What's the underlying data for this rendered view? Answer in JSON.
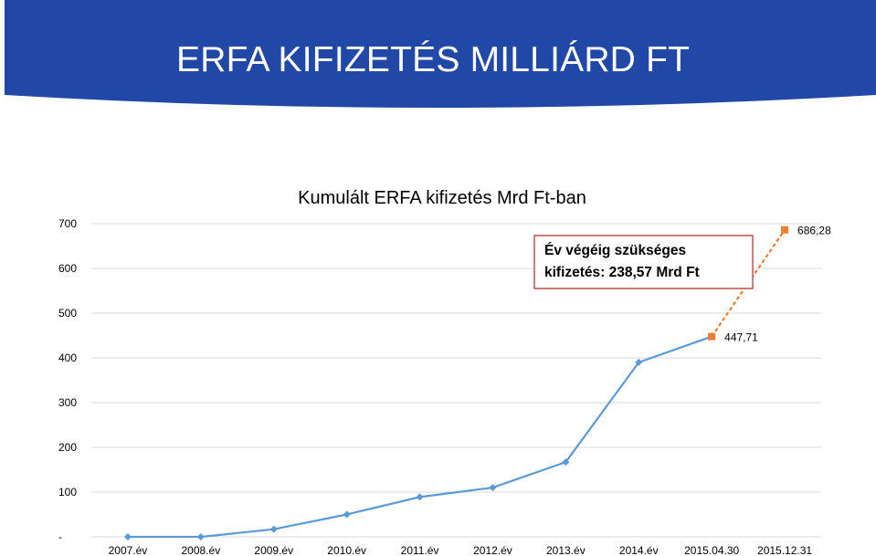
{
  "slide": {
    "title": "ERFA KIFIZETÉS MILLIÁRD FT",
    "banner_color": "#2148A6"
  },
  "chart_data": {
    "type": "line",
    "title": "Kumulált ERFA kifizetés Mrd Ft-ban",
    "categories": [
      "2007.év",
      "2008.év",
      "2009.év",
      "2010.év",
      "2011.év",
      "2012.év",
      "2013.év",
      "2014.év",
      "2015.04.30",
      "2015.12.31"
    ],
    "y_tick_labels": [
      "-",
      "100",
      "200",
      "300",
      "400",
      "500",
      "600",
      "700"
    ],
    "ylim": [
      0,
      700
    ],
    "grid": true,
    "series": [
      {
        "values": [
          0,
          0,
          17,
          50,
          89,
          110,
          167,
          390,
          447.71,
          null
        ],
        "color": "#5B9BD5",
        "line_style": "solid",
        "marker": "diamond"
      },
      {
        "values": [
          null,
          null,
          null,
          null,
          null,
          null,
          null,
          null,
          447.71,
          686.28
        ],
        "color": "#ED7D31",
        "line_style": "dashed",
        "marker": "square"
      }
    ],
    "data_labels": [
      {
        "category_index": 8,
        "text": "447,71"
      },
      {
        "category_index": 9,
        "text": "686,28"
      }
    ],
    "annotation": {
      "lines": [
        "Év végéig szükséges",
        "kifizetés:  238,57 Mrd Ft"
      ],
      "border_color": "#C0504D"
    }
  }
}
